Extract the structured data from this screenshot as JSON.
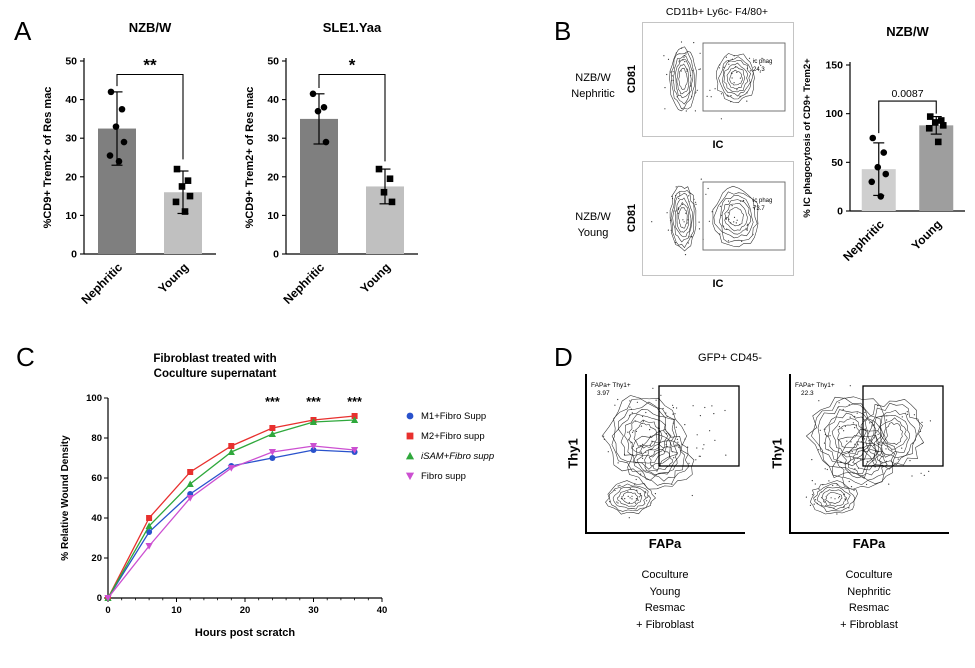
{
  "panels": {
    "A": {
      "letter": "A"
    },
    "B": {
      "letter": "B",
      "header": "CD11b+ Ly6c- F4/80+",
      "plots": [
        {
          "row_label": "NZB/W\nNephritic",
          "ylabel": "CD81",
          "xlabel": "IC",
          "gate_name": "ic phag",
          "gate_value": "24.3"
        },
        {
          "row_label": "NZB/W\nYoung",
          "ylabel": "CD81",
          "xlabel": "IC",
          "gate_name": "ic phag",
          "gate_value": "73.7"
        }
      ]
    },
    "C": {
      "letter": "C"
    },
    "D": {
      "letter": "D",
      "header": "GFP+ CD45-",
      "plots": [
        {
          "ylabel": "Thy1",
          "xlabel": "FAPa",
          "gate_name": "FAPa+ Thy1+",
          "gate_value": "3.97",
          "caption": "Coculture\nYoung\nResmac\n+ Fibroblast"
        },
        {
          "ylabel": "Thy1",
          "xlabel": "FAPa",
          "gate_name": "FAPa+ Thy1+",
          "gate_value": "22.3",
          "caption": "Coculture\nNephritic\nResmac\n+ Fibroblast"
        }
      ]
    }
  },
  "chart_data": [
    {
      "id": "A-NZBW",
      "type": "bar",
      "title": "NZB/W",
      "ylabel": "%CD9+ Trem2+ of Res mac",
      "categories": [
        "Nephritic",
        "Young"
      ],
      "values": [
        32.5,
        16
      ],
      "errors": [
        9.5,
        5.5
      ],
      "points": [
        [
          42,
          37.5,
          33,
          29,
          25.5,
          24
        ],
        [
          22,
          19,
          17.5,
          15,
          13.5,
          11
        ]
      ],
      "markers": [
        "circle",
        "square"
      ],
      "bar_colors": [
        "#7f7f7f",
        "#c0c0c0"
      ],
      "ylim": [
        0,
        50
      ],
      "yticks": [
        0,
        10,
        20,
        30,
        40,
        50
      ],
      "significance": {
        "label": "**"
      }
    },
    {
      "id": "A-SLE1Yaa",
      "type": "bar",
      "title": "SLE1.Yaa",
      "ylabel": "%CD9+ Trem2+ of Res mac",
      "categories": [
        "Nephritic",
        "Young"
      ],
      "values": [
        35,
        17.5
      ],
      "errors": [
        6.5,
        4.5
      ],
      "points": [
        [
          41.5,
          38,
          37,
          29
        ],
        [
          22,
          19.5,
          16,
          13.5
        ]
      ],
      "markers": [
        "circle",
        "square"
      ],
      "bar_colors": [
        "#7f7f7f",
        "#c0c0c0"
      ],
      "ylim": [
        0,
        50
      ],
      "yticks": [
        0,
        10,
        20,
        30,
        40,
        50
      ],
      "significance": {
        "label": "*"
      }
    },
    {
      "id": "B-NZBW",
      "type": "bar",
      "title": "NZB/W",
      "ylabel": "% IC phagocytosis of CD9+ Trem2+",
      "categories": [
        "Nephritic",
        "Young"
      ],
      "values": [
        43,
        88
      ],
      "errors": [
        27,
        9
      ],
      "points": [
        [
          75,
          60,
          45,
          38,
          30,
          15
        ],
        [
          97,
          93,
          91,
          88,
          85,
          71
        ]
      ],
      "markers": [
        "circle",
        "square"
      ],
      "bar_colors": [
        "#cfcfcf",
        "#9e9e9e"
      ],
      "ylim": [
        0,
        150
      ],
      "yticks": [
        0,
        50,
        100,
        150
      ],
      "significance": {
        "label": "0.0087"
      }
    },
    {
      "id": "C-wound",
      "type": "line",
      "title": "Fibroblast treated with\nCoculture supernatant",
      "xlabel": "Hours post scratch",
      "ylabel": "% Relative Wound Density",
      "x": [
        0,
        6,
        12,
        18,
        24,
        30,
        36
      ],
      "xlim": [
        0,
        40
      ],
      "ylim": [
        0,
        100
      ],
      "xticks": [
        0,
        10,
        20,
        30,
        40
      ],
      "yticks": [
        0,
        20,
        40,
        60,
        80,
        100
      ],
      "series": [
        {
          "name": "M1+Fibro Supp",
          "color": "#2952cc",
          "marker": "circle",
          "values": [
            0,
            33,
            52,
            66,
            70,
            74,
            73
          ]
        },
        {
          "name": "M2+Fibro supp",
          "color": "#e8302e",
          "marker": "square",
          "values": [
            0,
            40,
            63,
            76,
            85,
            89,
            91
          ]
        },
        {
          "name": "iSAM+Fibro supp",
          "color": "#2fa83c",
          "marker": "triangle",
          "values": [
            0,
            36,
            57,
            73,
            82,
            88,
            89
          ],
          "italic": true
        },
        {
          "name": "Fibro supp",
          "color": "#cc4fd1",
          "marker": "triangle-down",
          "values": [
            0,
            26,
            50,
            65,
            73,
            76,
            74
          ]
        }
      ],
      "significance": [
        {
          "x": 24,
          "label": "***"
        },
        {
          "x": 30,
          "label": "***"
        },
        {
          "x": 36,
          "label": "***"
        }
      ]
    }
  ]
}
